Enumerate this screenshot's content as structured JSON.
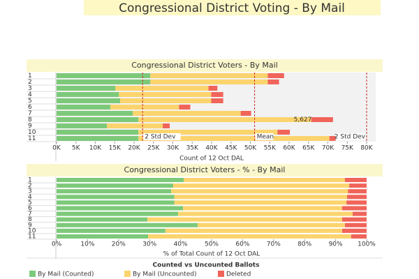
{
  "title": "Congressional District Voting - By Mail",
  "legend_title": "Counted vs Uncounted Ballots",
  "chart_data": [
    {
      "type": "stacked_bar_horizontal",
      "title": "Congressional District Voters -  By Mail",
      "x_label": "Count of 12 Oct DAL",
      "categories": [
        "1",
        "2",
        "3",
        "4",
        "5",
        "6",
        "7",
        "8",
        "9",
        "10",
        "11"
      ],
      "series": [
        {
          "name": "By Mail (Counted)",
          "color": "#7dc97a",
          "values": [
            24200,
            24200,
            15200,
            16100,
            16400,
            13900,
            19700,
            21100,
            13000,
            21100,
            21100
          ]
        },
        {
          "name": "By Mail (Uncounted)",
          "color": "#fcd46e",
          "values": [
            30300,
            30300,
            24000,
            23800,
            23500,
            17700,
            27800,
            44600,
            14400,
            35900,
            49300
          ]
        },
        {
          "name": "Deleted",
          "color": "#f0645a",
          "values": [
            4200,
            2900,
            2300,
            3100,
            3100,
            2900,
            2700,
            5627,
            1800,
            3200,
            1600
          ],
          "value_labels": [
            null,
            null,
            null,
            null,
            null,
            null,
            null,
            "5,627",
            null,
            null,
            null
          ]
        }
      ],
      "xlim": [
        0,
        80000
      ],
      "xticks": [
        {
          "value": 0,
          "label": "0K"
        },
        {
          "value": 5000,
          "label": "5K"
        },
        {
          "value": 10000,
          "label": "10K"
        },
        {
          "value": 15000,
          "label": "15K"
        },
        {
          "value": 20000,
          "label": "20K"
        },
        {
          "value": 25000,
          "label": "25K"
        },
        {
          "value": 30000,
          "label": "30K"
        },
        {
          "value": 35000,
          "label": "35K"
        },
        {
          "value": 40000,
          "label": "40K"
        },
        {
          "value": 45000,
          "label": "45K"
        },
        {
          "value": 50000,
          "label": "50K"
        },
        {
          "value": 55000,
          "label": "55K"
        },
        {
          "value": 60000,
          "label": "60K"
        },
        {
          "value": 65000,
          "label": "65K"
        },
        {
          "value": 70000,
          "label": "70K"
        },
        {
          "value": 75000,
          "label": "75K"
        },
        {
          "value": 80000,
          "label": "80K"
        }
      ],
      "reference_lines": [
        {
          "label": "2 Std Dev",
          "value": 22200
        },
        {
          "label": "Mean",
          "value": 51100
        },
        {
          "label": "2 Std Dev",
          "value": 80000
        }
      ]
    },
    {
      "type": "stacked_bar_horizontal",
      "title": "Congressional District Voters -  % - By Mail",
      "x_label": "% of Total Count of 12 Oct DAL",
      "categories": [
        "1",
        "2",
        "3",
        "4",
        "5",
        "6",
        "7",
        "8",
        "9",
        "10",
        "11"
      ],
      "series": [
        {
          "color": "#7dc97a",
          "values": [
            41,
            37.6,
            37,
            38,
            38,
            40.8,
            39.2,
            29.3,
            45.5,
            35.1,
            29.5
          ]
        },
        {
          "color": "#fcd46e",
          "values": [
            52,
            56.8,
            57,
            55.7,
            55.5,
            51.3,
            56.3,
            62.8,
            47.5,
            57,
            65.5
          ]
        },
        {
          "color": "#f0645a",
          "values": [
            7,
            5.6,
            6,
            6.3,
            6.5,
            7.9,
            4.5,
            7.9,
            7,
            7.9,
            5
          ]
        }
      ],
      "xlim": [
        0,
        100
      ],
      "xticks": [
        {
          "value": 0,
          "label": "0%"
        },
        {
          "value": 10,
          "label": "10%"
        },
        {
          "value": 20,
          "label": "20%"
        },
        {
          "value": 30,
          "label": "30%"
        },
        {
          "value": 40,
          "label": "40%"
        },
        {
          "value": 50,
          "label": "50%"
        },
        {
          "value": 60,
          "label": "60%"
        },
        {
          "value": 70,
          "label": "70%"
        },
        {
          "value": 80,
          "label": "80%"
        },
        {
          "value": 90,
          "label": "90%"
        },
        {
          "value": 100,
          "label": "100%"
        }
      ]
    }
  ]
}
